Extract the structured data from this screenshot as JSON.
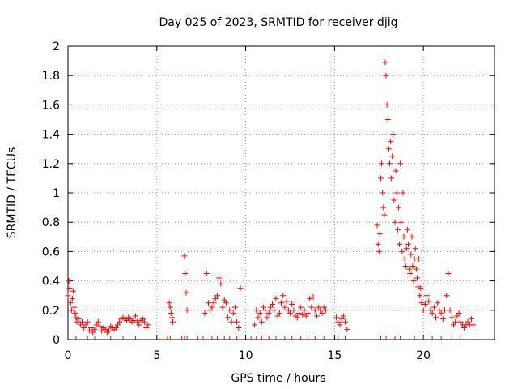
{
  "chart_data": {
    "type": "scatter",
    "title": "Day 025 of 2023, SRMTID for receiver djig",
    "xlabel": "GPS time / hours",
    "ylabel": "SRMTID / TECUs",
    "xlim": [
      0,
      24
    ],
    "ylim": [
      0,
      2
    ],
    "x_ticks": [
      0,
      5,
      10,
      15,
      20
    ],
    "x_tick_labels": [
      "0",
      "5",
      "10",
      "15",
      "20"
    ],
    "y_ticks": [
      0,
      0.2,
      0.4,
      0.6,
      0.8,
      1,
      1.2,
      1.4,
      1.6,
      1.8,
      2
    ],
    "y_tick_labels": [
      "0",
      "0.2",
      "0.4",
      "0.6",
      "0.8",
      "1",
      "1.2",
      "1.4",
      "1.6",
      "1.8",
      "2"
    ],
    "grid": true,
    "marker": "+",
    "marker_color": "#ff0000",
    "series": [
      {
        "name": "SRMTID",
        "x": [
          0.0,
          0.05,
          0.1,
          0.15,
          0.2,
          0.25,
          0.3,
          0.35,
          0.4,
          0.45,
          0.5,
          0.6,
          0.7,
          0.8,
          0.9,
          1.0,
          1.1,
          1.2,
          1.3,
          1.4,
          1.5,
          1.6,
          1.7,
          1.8,
          1.9,
          2.0,
          2.1,
          2.2,
          2.3,
          2.4,
          2.5,
          2.6,
          2.7,
          2.8,
          2.9,
          3.0,
          3.1,
          3.2,
          3.3,
          3.4,
          3.5,
          3.6,
          3.7,
          3.8,
          3.9,
          4.0,
          4.1,
          4.2,
          4.3,
          4.4,
          4.5,
          5.7,
          5.75,
          5.8,
          5.85,
          5.9,
          6.55,
          6.6,
          6.65,
          6.7,
          7.7,
          7.8,
          7.9,
          8.0,
          8.1,
          8.2,
          8.3,
          8.4,
          8.5,
          8.6,
          8.7,
          8.8,
          8.9,
          9.0,
          9.1,
          9.2,
          9.3,
          9.4,
          9.5,
          9.6,
          9.7,
          10.5,
          10.6,
          10.7,
          10.8,
          10.9,
          11.0,
          11.1,
          11.2,
          11.3,
          11.4,
          11.5,
          11.6,
          11.7,
          11.8,
          11.9,
          12.0,
          12.1,
          12.2,
          12.3,
          12.4,
          12.5,
          12.6,
          12.7,
          12.8,
          12.9,
          13.0,
          13.1,
          13.2,
          13.3,
          13.4,
          13.5,
          13.6,
          13.7,
          13.8,
          13.9,
          14.0,
          14.1,
          14.2,
          14.3,
          14.4,
          14.5,
          15.1,
          15.2,
          15.3,
          15.4,
          15.5,
          15.6,
          15.7,
          17.4,
          17.45,
          17.5,
          17.55,
          17.6,
          17.65,
          17.7,
          17.75,
          17.8,
          17.85,
          17.9,
          17.95,
          18.0,
          18.05,
          18.1,
          18.15,
          18.2,
          18.25,
          18.3,
          18.35,
          18.4,
          18.45,
          18.5,
          18.55,
          18.6,
          18.65,
          18.7,
          18.75,
          18.8,
          18.85,
          18.9,
          18.95,
          19.0,
          19.05,
          19.1,
          19.15,
          19.2,
          19.25,
          19.3,
          19.35,
          19.4,
          19.45,
          19.5,
          19.55,
          19.6,
          19.65,
          19.7,
          19.75,
          19.8,
          19.85,
          19.9,
          20.0,
          20.1,
          20.2,
          20.3,
          20.4,
          20.5,
          20.6,
          20.7,
          20.8,
          20.9,
          21.0,
          21.1,
          21.2,
          21.3,
          21.4,
          21.5,
          21.6,
          21.7,
          21.8,
          21.9,
          22.0,
          22.1,
          22.2,
          22.3,
          22.4,
          22.5,
          22.6,
          22.7,
          22.8
        ],
        "y": [
          0.3,
          0.4,
          0.35,
          0.25,
          0.2,
          0.28,
          0.33,
          0.22,
          0.18,
          0.15,
          0.12,
          0.14,
          0.1,
          0.12,
          0.08,
          0.1,
          0.12,
          0.06,
          0.08,
          0.05,
          0.07,
          0.1,
          0.12,
          0.09,
          0.06,
          0.08,
          0.07,
          0.05,
          0.06,
          0.09,
          0.08,
          0.07,
          0.08,
          0.1,
          0.12,
          0.14,
          0.15,
          0.14,
          0.13,
          0.15,
          0.14,
          0.12,
          0.13,
          0.16,
          0.12,
          0.1,
          0.13,
          0.14,
          0.12,
          0.08,
          0.1,
          0.25,
          0.22,
          0.18,
          0.15,
          0.12,
          0.57,
          0.45,
          0.32,
          0.2,
          0.18,
          0.45,
          0.25,
          0.2,
          0.22,
          0.25,
          0.28,
          0.3,
          0.42,
          0.38,
          0.22,
          0.27,
          0.25,
          0.15,
          0.2,
          0.12,
          0.18,
          0.22,
          0.12,
          0.08,
          0.35,
          0.1,
          0.2,
          0.15,
          0.18,
          0.12,
          0.22,
          0.2,
          0.15,
          0.18,
          0.22,
          0.24,
          0.2,
          0.28,
          0.16,
          0.18,
          0.25,
          0.3,
          0.22,
          0.26,
          0.2,
          0.18,
          0.24,
          0.2,
          0.16,
          0.15,
          0.18,
          0.22,
          0.17,
          0.2,
          0.16,
          0.18,
          0.28,
          0.22,
          0.29,
          0.2,
          0.16,
          0.22,
          0.2,
          0.18,
          0.22,
          0.2,
          0.15,
          0.12,
          0.1,
          0.14,
          0.16,
          0.12,
          0.07,
          0.78,
          0.65,
          0.6,
          0.72,
          1.1,
          1.2,
          1.0,
          0.9,
          0.85,
          1.89,
          1.8,
          1.6,
          1.5,
          1.3,
          1.2,
          1.35,
          1.1,
          1.25,
          1.4,
          0.95,
          0.8,
          1.15,
          1.0,
          0.75,
          0.9,
          0.65,
          1.2,
          0.8,
          0.6,
          1.0,
          0.7,
          0.55,
          0.5,
          0.62,
          0.75,
          0.65,
          0.48,
          0.45,
          0.58,
          0.7,
          0.5,
          0.4,
          0.55,
          0.62,
          0.48,
          0.42,
          0.36,
          0.55,
          0.3,
          0.35,
          0.25,
          0.2,
          0.24,
          0.3,
          0.26,
          0.2,
          0.18,
          0.22,
          0.15,
          0.25,
          0.2,
          0.18,
          0.14,
          0.2,
          0.3,
          0.45,
          0.2,
          0.15,
          0.1,
          0.12,
          0.16,
          0.18,
          0.12,
          0.1,
          0.08,
          0.1,
          0.12,
          0.1,
          0.14,
          0.1
        ]
      }
    ],
    "dropout_marks": {
      "name": "zero-level marks",
      "x": [
        0.45,
        1.1,
        1.5,
        2.4,
        3.1,
        3.8,
        5.6,
        5.75,
        6.4,
        6.55,
        6.7,
        7.3,
        7.6,
        8.1,
        8.4,
        8.8,
        9.1,
        9.5,
        10.3,
        10.6,
        10.9,
        11.3,
        11.7,
        12.2,
        12.6,
        13.1,
        13.5,
        13.9,
        14.4,
        15.2,
        15.6,
        17.6,
        17.9,
        18.4,
        18.7,
        19.5,
        20.0,
        20.5,
        21.0,
        21.6,
        22.1
      ]
    }
  }
}
